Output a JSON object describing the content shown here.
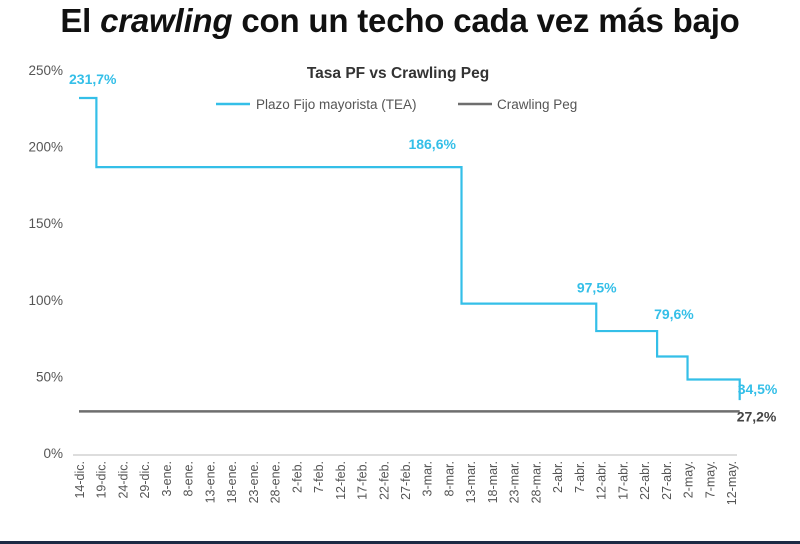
{
  "headline": {
    "part1": "El ",
    "part2": "crawling",
    "part3": " con un techo cada vez más bajo"
  },
  "colors": {
    "pf": "#34bfe8",
    "crawling": "#6e6e6e",
    "axis_text": "#555555",
    "headline": "#111111"
  },
  "chart_data": {
    "type": "line",
    "title": "Tasa PF vs Crawling Peg",
    "legend_position": "top-center",
    "grid": false,
    "ylim": [
      0,
      250
    ],
    "yticks": [
      "0%",
      "50%",
      "100%",
      "150%",
      "200%",
      "250%"
    ],
    "categories": [
      "14-dic.",
      "19-dic.",
      "24-dic.",
      "29-dic.",
      "3-ene.",
      "8-ene.",
      "13-ene.",
      "18-ene.",
      "23-ene.",
      "28-ene.",
      "2-feb.",
      "7-feb.",
      "12-feb.",
      "17-feb.",
      "22-feb.",
      "27-feb.",
      "3-mar.",
      "8-mar.",
      "13-mar.",
      "18-mar.",
      "23-mar.",
      "28-mar.",
      "2-abr.",
      "7-abr.",
      "12-abr.",
      "17-abr.",
      "22-abr.",
      "27-abr.",
      "2-may.",
      "7-may.",
      "12-may."
    ],
    "series": [
      {
        "name": "Plazo Fijo mayorista (TEA)",
        "step": true,
        "points": [
          {
            "x": "14-dic.",
            "y": 231.7
          },
          {
            "x": "18-dic.",
            "y": 186.6
          },
          {
            "x": "11-mar.",
            "y": 97.5
          },
          {
            "x": "11-abr.",
            "y": 79.6
          },
          {
            "x": "25-abr.",
            "y": 63.0
          },
          {
            "x": "2-may.",
            "y": 48.0
          },
          {
            "x": "14-may.",
            "y": 34.5
          }
        ],
        "end": "14-may."
      },
      {
        "name": "Crawling Peg",
        "points": [
          {
            "x": "14-dic.",
            "y": 27.2
          },
          {
            "x": "14-may.",
            "y": 27.2
          }
        ]
      }
    ],
    "annotations": [
      {
        "text": "231,7%",
        "series": "Plazo Fijo mayorista (TEA)"
      },
      {
        "text": "186,6%",
        "series": "Plazo Fijo mayorista (TEA)"
      },
      {
        "text": "97,5%",
        "series": "Plazo Fijo mayorista (TEA)"
      },
      {
        "text": "79,6%",
        "series": "Plazo Fijo mayorista (TEA)"
      },
      {
        "text": "34,5%",
        "series": "Plazo Fijo mayorista (TEA)"
      },
      {
        "text": "27,2%",
        "series": "Crawling Peg"
      }
    ]
  }
}
